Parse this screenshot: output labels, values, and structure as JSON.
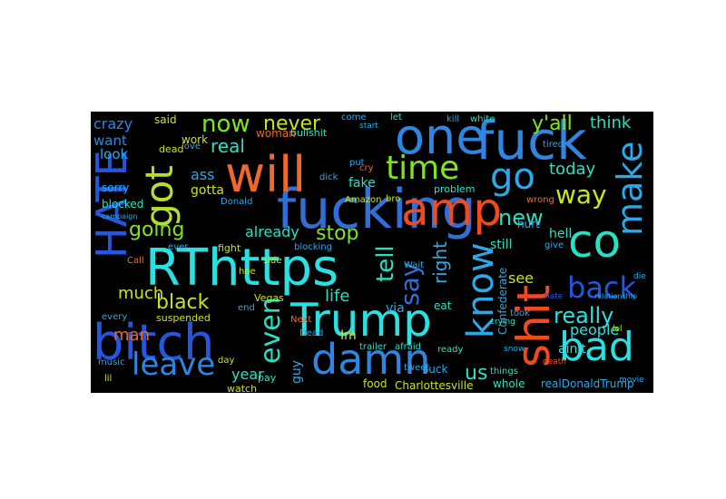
{
  "word_cloud": {
    "background": "#000000",
    "words": [
      {
        "text": "fucking",
        "color": "#2f6fd6"
      },
      {
        "text": "will",
        "color": "#f0682a"
      },
      {
        "text": "one",
        "color": "#2f86e0"
      },
      {
        "text": "fuck",
        "color": "#2f86e0"
      },
      {
        "text": "got",
        "color": "#b5e02a"
      },
      {
        "text": "HATE",
        "color": "#2456e0"
      },
      {
        "text": "time",
        "color": "#7fe51e"
      },
      {
        "text": "go",
        "color": "#2aa9e8"
      },
      {
        "text": "make",
        "color": "#2aa9e8"
      },
      {
        "text": "amp",
        "color": "#f24a1c"
      },
      {
        "text": "way",
        "color": "#c8e51a"
      },
      {
        "text": "new",
        "color": "#2ae0c2"
      },
      {
        "text": "co",
        "color": "#2ae0c2"
      },
      {
        "text": "RThttps",
        "color": "#2ae0e0"
      },
      {
        "text": "shit",
        "color": "#f24a1c"
      },
      {
        "text": "know",
        "color": "#2aa9e8"
      },
      {
        "text": "tell",
        "color": "#2ae0c2"
      },
      {
        "text": "say",
        "color": "#2f6fd6"
      },
      {
        "text": "back",
        "color": "#2456e0"
      },
      {
        "text": "Trump",
        "color": "#2ae0e0"
      },
      {
        "text": "bitch",
        "color": "#2456e0"
      },
      {
        "text": "damn",
        "color": "#2f86e0"
      },
      {
        "text": "bad",
        "color": "#2ae0e0"
      },
      {
        "text": "leave",
        "color": "#2f86e0"
      },
      {
        "text": "even",
        "color": "#2ae0c2"
      },
      {
        "text": "going",
        "color": "#7fe51e"
      },
      {
        "text": "stop",
        "color": "#7fe51e"
      },
      {
        "text": "black",
        "color": "#c8e51a"
      },
      {
        "text": "much",
        "color": "#c8e51a"
      },
      {
        "text": "really",
        "color": "#2ae0e0"
      },
      {
        "text": "now",
        "color": "#7fe51e"
      },
      {
        "text": "never",
        "color": "#c8e51a"
      },
      {
        "text": "y'all",
        "color": "#7fe51e"
      },
      {
        "text": "think",
        "color": "#2ae0c2"
      },
      {
        "text": "crazy",
        "color": "#2f86e0"
      },
      {
        "text": "want",
        "color": "#2f86e0"
      },
      {
        "text": "look",
        "color": "#2aa9e8"
      },
      {
        "text": "real",
        "color": "#2ae0c2"
      },
      {
        "text": "ass",
        "color": "#2aa9e8"
      },
      {
        "text": "today",
        "color": "#2ae0c2"
      },
      {
        "text": "already",
        "color": "#2ae0c2"
      },
      {
        "text": "right",
        "color": "#2aa9e8"
      },
      {
        "text": "people",
        "color": "#2ae0e0"
      },
      {
        "text": "life",
        "color": "#2ae0c2"
      },
      {
        "text": "man",
        "color": "#f0682a"
      },
      {
        "text": "guy",
        "color": "#2aa9e8"
      },
      {
        "text": "us",
        "color": "#2ae0c2"
      },
      {
        "text": "year",
        "color": "#2ae0c2"
      },
      {
        "text": "via",
        "color": "#2aa9e8"
      },
      {
        "text": "see",
        "color": "#c8e51a"
      },
      {
        "text": "still",
        "color": "#2ae0c2"
      },
      {
        "text": "hell",
        "color": "#2ae0c2"
      },
      {
        "text": "ain't",
        "color": "#2ae0e0"
      },
      {
        "text": "hurt",
        "color": "#2aa9e8"
      },
      {
        "text": "realDonaldTrump",
        "color": "#2aa9e8"
      },
      {
        "text": "Charlottesville",
        "color": "#c8e51a"
      },
      {
        "text": "whole",
        "color": "#2ae0c2"
      },
      {
        "text": "suck",
        "color": "#2aa9e8"
      },
      {
        "text": "food",
        "color": "#c8e51a"
      },
      {
        "text": "fake",
        "color": "#2ae0c2"
      },
      {
        "text": "gotta",
        "color": "#c8e51a"
      },
      {
        "text": "sorry",
        "color": "#2aa9e8"
      },
      {
        "text": "blocked",
        "color": "#2ae0c2"
      },
      {
        "text": "work",
        "color": "#c8e51a"
      },
      {
        "text": "said",
        "color": "#c8e51a"
      },
      {
        "text": "woman",
        "color": "#f0682a"
      },
      {
        "text": "bullshit",
        "color": "#2ae0c2"
      },
      {
        "text": "dead",
        "color": "#c8e51a"
      },
      {
        "text": "Donald",
        "color": "#2aa9e8"
      },
      {
        "text": "Amazon",
        "color": "#c8e51a"
      },
      {
        "text": "fight",
        "color": "#c8e51a"
      },
      {
        "text": "Vegas",
        "color": "#c8e51a"
      },
      {
        "text": "problem",
        "color": "#2ae0c2"
      },
      {
        "text": "blocking",
        "color": "#2aa9e8"
      },
      {
        "text": "suspended",
        "color": "#c8e51a"
      },
      {
        "text": "pay",
        "color": "#2ae0c2"
      },
      {
        "text": "watch",
        "color": "#c8e51a"
      },
      {
        "text": "Next",
        "color": "#f0682a"
      },
      {
        "text": "Im",
        "color": "#c8e51a"
      },
      {
        "text": "trailer",
        "color": "#2ae0c2"
      },
      {
        "text": "afraid",
        "color": "#2ae0c2"
      },
      {
        "text": "things",
        "color": "#2ae0c2"
      },
      {
        "text": "give",
        "color": "#2aa9e8"
      },
      {
        "text": "Confederate",
        "color": "#2aa9e8"
      },
      {
        "text": "eat",
        "color": "#2ae0c2"
      },
      {
        "text": "took",
        "color": "#2aa9e8"
      },
      {
        "text": "ready",
        "color": "#2ae0c2"
      },
      {
        "text": "music",
        "color": "#2aa9e8"
      },
      {
        "text": "lil",
        "color": "#c8e51a"
      },
      {
        "text": "Call",
        "color": "#f0682a"
      },
      {
        "text": "side",
        "color": "#c8e51a"
      },
      {
        "text": "end",
        "color": "#2aa9e8"
      },
      {
        "text": "dick",
        "color": "#2aa9e8"
      },
      {
        "text": "cry",
        "color": "#f0682a"
      },
      {
        "text": "come",
        "color": "#2aa9e8"
      },
      {
        "text": "let",
        "color": "#2ae0c2"
      },
      {
        "text": "kill",
        "color": "#2aa9e8"
      },
      {
        "text": "white",
        "color": "#2ae0c2"
      },
      {
        "text": "hoe",
        "color": "#c8e51a"
      },
      {
        "text": "Wait",
        "color": "#2aa9e8"
      },
      {
        "text": "bro",
        "color": "#c8e51a"
      },
      {
        "text": "wrong",
        "color": "#f0682a"
      },
      {
        "text": "tired",
        "color": "#2aa9e8"
      },
      {
        "text": "every",
        "color": "#2aa9e8"
      },
      {
        "text": "ever",
        "color": "#2aa9e8"
      },
      {
        "text": "love",
        "color": "#2aa9e8"
      },
      {
        "text": "day",
        "color": "#c8e51a"
      },
      {
        "text": "tweet",
        "color": "#2aa9e8"
      },
      {
        "text": "Dead",
        "color": "#2aa9e8"
      },
      {
        "text": "put",
        "color": "#2aa9e8"
      },
      {
        "text": "start",
        "color": "#2aa9e8"
      },
      {
        "text": "lol",
        "color": "#c8e51a"
      },
      {
        "text": "movie",
        "color": "#2aa9e8"
      },
      {
        "text": "death",
        "color": "#f24a1c"
      },
      {
        "text": "snow",
        "color": "#2aa9e8"
      },
      {
        "text": "crying",
        "color": "#2ae0c2"
      },
      {
        "text": "die",
        "color": "#2aa9e8"
      },
      {
        "text": "hate",
        "color": "#2456e0"
      },
      {
        "text": "campaign",
        "color": "#2aa9e8"
      },
      {
        "text": "relationship",
        "color": "#2aa9e8"
      }
    ]
  }
}
